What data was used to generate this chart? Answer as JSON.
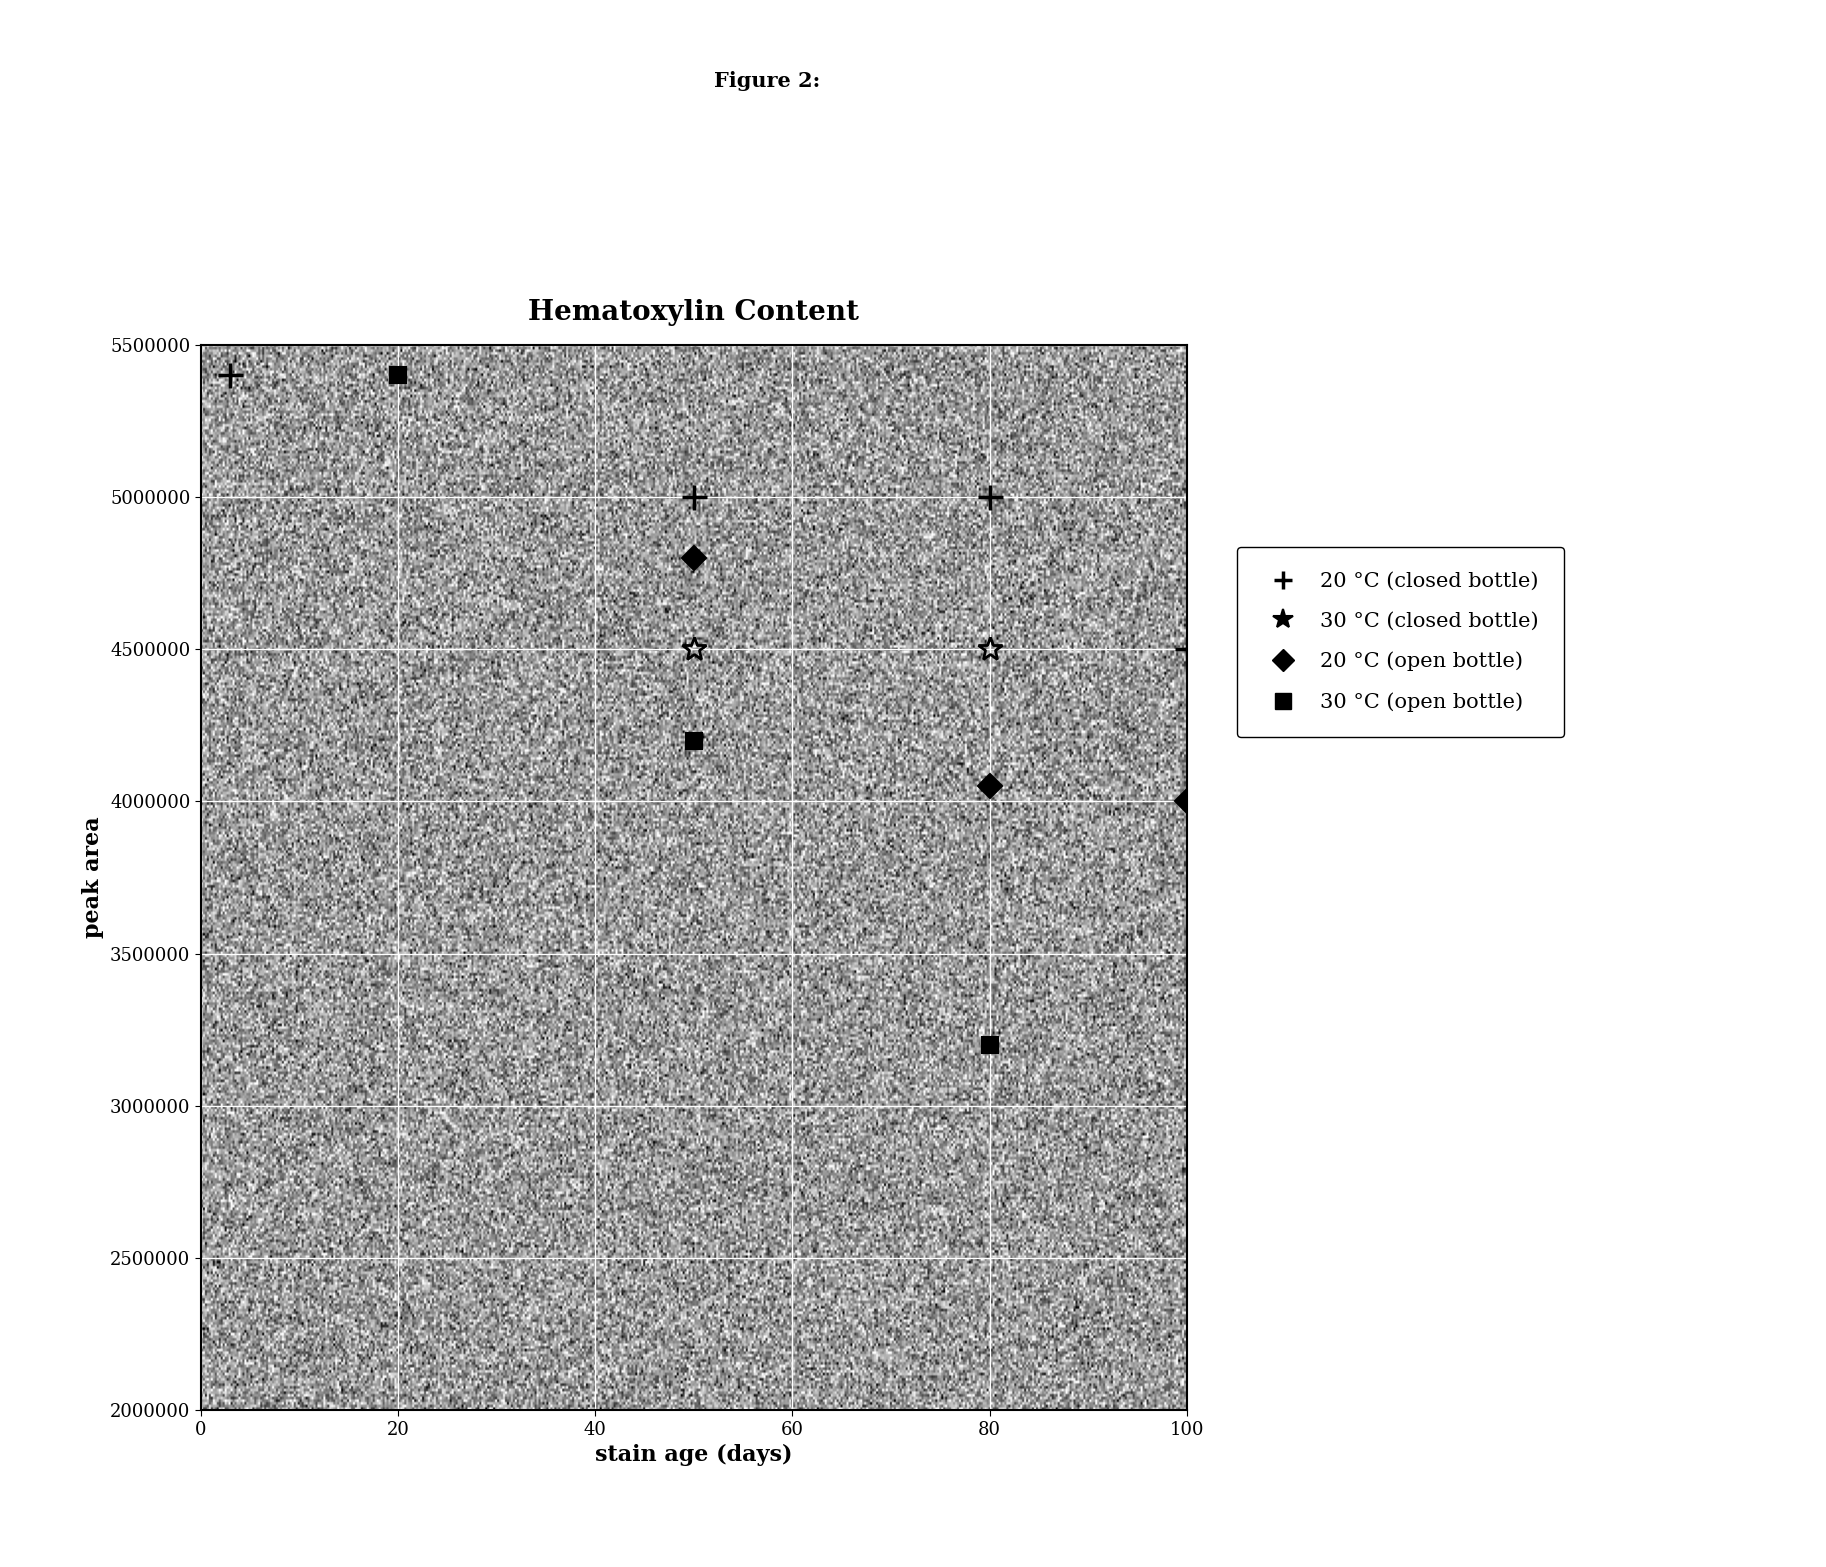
{
  "title": "Hematoxylin Content",
  "figure_label": "Figure 2:",
  "xlabel": "stain age (days)",
  "ylabel": "peak area",
  "xlim": [
    0,
    100
  ],
  "ylim": [
    2000000,
    5500000
  ],
  "xticks": [
    0,
    20,
    40,
    60,
    80,
    100
  ],
  "yticks": [
    2000000,
    2500000,
    3000000,
    3500000,
    4000000,
    4500000,
    5000000,
    5500000
  ],
  "series": [
    {
      "label": "20 °C (closed bottle)",
      "marker": "+",
      "x": [
        3,
        50,
        80,
        100
      ],
      "y": [
        5400000,
        5000000,
        5000000,
        4500000
      ]
    },
    {
      "label": "30 °C (closed bottle)",
      "marker": "x",
      "x": [
        50,
        80
      ],
      "y": [
        4500000,
        4500000
      ]
    },
    {
      "label": "20 °C (open bottle)",
      "marker": "D",
      "x": [
        50,
        80,
        100
      ],
      "y": [
        4800000,
        4050000,
        4000000
      ]
    },
    {
      "label": "30 °C (open bottle)",
      "marker": "s",
      "x": [
        20,
        50,
        80
      ],
      "y": [
        5400000,
        4200000,
        3200000
      ]
    }
  ],
  "noise_mean": 155,
  "noise_std": 55,
  "noise_seed": 42,
  "figure_bg": "#ffffff",
  "title_fontsize": 20,
  "label_fontsize": 16,
  "tick_fontsize": 13,
  "legend_fontsize": 15,
  "fig_label_fontsize": 15
}
